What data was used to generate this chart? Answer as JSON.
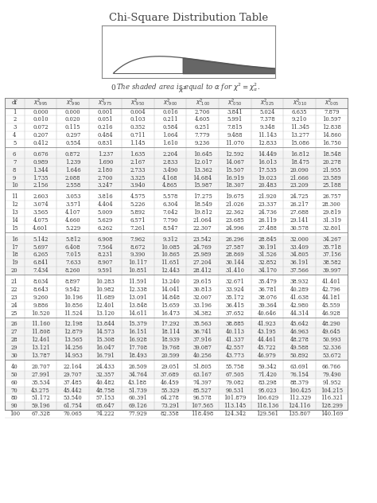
{
  "title": "Chi-Square Distribution Table",
  "col_headers_latex": [
    "df",
    "$\\chi^2_{.995}$",
    "$\\chi^2_{.990}$",
    "$\\chi^2_{.975}$",
    "$\\chi^2_{.950}$",
    "$\\chi^2_{.900}$",
    "$\\chi^2_{.100}$",
    "$\\chi^2_{.050}$",
    "$\\chi^2_{.025}$",
    "$\\chi^2_{.010}$",
    "$\\chi^2_{.005}$"
  ],
  "rows": [
    [
      1,
      0.0,
      0.0,
      0.001,
      0.004,
      0.016,
      2.706,
      3.841,
      5.024,
      6.635,
      7.879
    ],
    [
      2,
      0.01,
      0.02,
      0.051,
      0.103,
      0.211,
      4.605,
      5.991,
      7.378,
      9.21,
      10.597
    ],
    [
      3,
      0.072,
      0.115,
      0.216,
      0.352,
      0.584,
      6.251,
      7.815,
      9.348,
      11.345,
      12.838
    ],
    [
      4,
      0.207,
      0.297,
      0.484,
      0.711,
      1.064,
      7.779,
      9.488,
      11.143,
      13.277,
      14.86
    ],
    [
      5,
      0.412,
      0.554,
      0.831,
      1.145,
      1.61,
      9.236,
      11.07,
      12.833,
      15.086,
      16.75
    ],
    [
      6,
      0.676,
      0.872,
      1.237,
      1.635,
      2.204,
      10.645,
      12.592,
      14.449,
      16.812,
      18.548
    ],
    [
      7,
      0.989,
      1.239,
      1.69,
      2.167,
      2.833,
      12.017,
      14.067,
      16.013,
      18.475,
      20.278
    ],
    [
      8,
      1.344,
      1.646,
      2.18,
      2.733,
      3.49,
      13.362,
      15.507,
      17.535,
      20.09,
      21.955
    ],
    [
      9,
      1.735,
      2.088,
      2.7,
      3.325,
      4.168,
      14.684,
      16.919,
      19.023,
      21.666,
      23.589
    ],
    [
      10,
      2.156,
      2.558,
      3.247,
      3.94,
      4.865,
      15.987,
      18.307,
      20.483,
      23.209,
      25.188
    ],
    [
      11,
      2.603,
      3.053,
      3.816,
      4.575,
      5.578,
      17.275,
      19.675,
      21.92,
      24.725,
      26.757
    ],
    [
      12,
      3.074,
      3.571,
      4.404,
      5.226,
      6.304,
      18.549,
      21.026,
      23.337,
      26.217,
      28.3
    ],
    [
      13,
      3.565,
      4.107,
      5.009,
      5.892,
      7.042,
      19.812,
      22.362,
      24.736,
      27.688,
      29.819
    ],
    [
      14,
      4.075,
      4.66,
      5.629,
      6.571,
      7.79,
      21.064,
      23.685,
      26.119,
      29.141,
      31.319
    ],
    [
      15,
      4.601,
      5.229,
      6.262,
      7.261,
      8.547,
      22.307,
      24.996,
      27.488,
      30.578,
      32.801
    ],
    [
      16,
      5.142,
      5.812,
      6.908,
      7.962,
      9.312,
      23.542,
      26.296,
      28.845,
      32.0,
      34.267
    ],
    [
      17,
      5.697,
      6.408,
      7.564,
      8.672,
      10.085,
      24.769,
      27.587,
      30.191,
      33.409,
      35.718
    ],
    [
      18,
      6.265,
      7.015,
      8.231,
      9.39,
      10.865,
      25.989,
      28.869,
      31.526,
      34.805,
      37.156
    ],
    [
      19,
      6.841,
      7.633,
      8.907,
      10.117,
      11.651,
      27.204,
      30.144,
      32.852,
      36.191,
      38.582
    ],
    [
      20,
      7.434,
      8.26,
      9.591,
      10.851,
      12.443,
      28.412,
      31.41,
      34.17,
      37.566,
      39.997
    ],
    [
      21,
      8.034,
      8.897,
      10.283,
      11.591,
      13.24,
      29.615,
      32.671,
      35.479,
      38.932,
      41.401
    ],
    [
      22,
      8.643,
      9.542,
      10.982,
      12.338,
      14.041,
      30.813,
      33.924,
      36.781,
      40.289,
      42.796
    ],
    [
      23,
      9.26,
      10.196,
      11.689,
      13.091,
      14.848,
      32.007,
      35.172,
      38.076,
      41.638,
      44.181
    ],
    [
      24,
      9.886,
      10.856,
      12.401,
      13.848,
      15.659,
      33.196,
      36.415,
      39.364,
      42.98,
      45.559
    ],
    [
      25,
      10.52,
      11.524,
      13.12,
      14.611,
      16.473,
      34.382,
      37.652,
      40.646,
      44.314,
      46.928
    ],
    [
      26,
      11.16,
      12.198,
      13.844,
      15.379,
      17.292,
      35.563,
      38.885,
      41.923,
      45.642,
      48.29
    ],
    [
      27,
      11.808,
      12.879,
      14.573,
      16.151,
      18.114,
      36.741,
      40.113,
      43.195,
      46.963,
      49.645
    ],
    [
      28,
      12.461,
      13.565,
      15.308,
      16.928,
      18.939,
      37.916,
      41.337,
      44.461,
      48.278,
      50.993
    ],
    [
      29,
      13.121,
      14.256,
      16.047,
      17.708,
      19.768,
      39.087,
      42.557,
      45.722,
      49.588,
      52.336
    ],
    [
      30,
      13.787,
      14.953,
      16.791,
      18.493,
      20.599,
      40.256,
      43.773,
      46.979,
      50.892,
      53.672
    ],
    [
      40,
      20.707,
      22.164,
      24.433,
      26.509,
      29.051,
      51.805,
      55.758,
      59.342,
      63.691,
      66.766
    ],
    [
      50,
      27.991,
      29.707,
      32.357,
      34.764,
      37.689,
      63.167,
      67.505,
      71.42,
      76.154,
      79.49
    ],
    [
      60,
      35.534,
      37.485,
      40.482,
      43.188,
      46.459,
      74.397,
      79.082,
      83.298,
      88.379,
      91.952
    ],
    [
      70,
      43.275,
      45.442,
      48.758,
      51.739,
      55.329,
      85.527,
      90.531,
      95.023,
      100.425,
      104.215
    ],
    [
      80,
      51.172,
      53.54,
      57.153,
      60.391,
      64.278,
      96.578,
      101.879,
      106.629,
      112.329,
      116.321
    ],
    [
      90,
      59.196,
      61.754,
      65.647,
      69.126,
      73.291,
      107.565,
      113.145,
      118.136,
      124.116,
      128.299
    ],
    [
      100,
      67.328,
      70.065,
      74.222,
      77.929,
      82.358,
      118.498,
      124.342,
      129.561,
      135.807,
      140.169
    ]
  ],
  "group_breaks": [
    5,
    10,
    15,
    20,
    25,
    30
  ],
  "background_color": "#ffffff",
  "text_color": "#333333",
  "grid_color": "#888888"
}
